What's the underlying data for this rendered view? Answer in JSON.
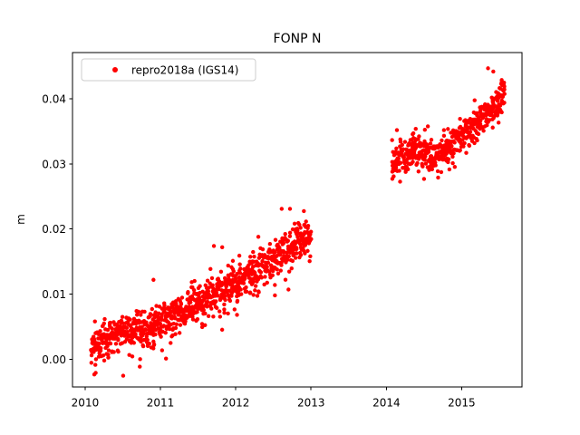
{
  "figure": {
    "background": "#ffffff",
    "title": "FONP N"
  },
  "legend": {
    "label": "repro2018a (IGS14)",
    "marker": "red-dot",
    "marker_color": "#ff0000",
    "border_color": "#cccccc",
    "background": "#ffffff"
  },
  "chart_data": {
    "type": "scatter",
    "title": "FONP N",
    "xlabel": "",
    "ylabel": "m",
    "grid": false,
    "legend_position": "upper left",
    "xlim": [
      2009.832,
      2015.801
    ],
    "ylim": [
      -0.0043,
      0.04712
    ],
    "xticks": [
      2010,
      2011,
      2012,
      2013,
      2014,
      2015
    ],
    "xtick_labels": [
      "2010",
      "2011",
      "2012",
      "2013",
      "2014",
      "2015"
    ],
    "yticks": [
      0.0,
      0.01,
      0.02,
      0.03,
      0.04
    ],
    "ytick_labels": [
      "0.00",
      "0.01",
      "0.02",
      "0.03",
      "0.04"
    ],
    "series": [
      {
        "name": "repro2018a (IGS14)",
        "color": "#ff0000",
        "marker": "dot",
        "marker_radius_px": 2.2,
        "seed": 7,
        "data_gap_years": [
          2013.0,
          2014.08
        ],
        "segments": [
          {
            "n": 920,
            "x_start": 2010.08,
            "x_end": 2013.0,
            "noise_sigma": 0.0013,
            "heavy_tail_prob": 0.035,
            "heavy_tail_mult": 2.1,
            "burst_prob": 0.05,
            "trend": [
              [
                2010.08,
                0.0015
              ],
              [
                2010.45,
                0.0042
              ],
              [
                2010.85,
                0.005
              ],
              [
                2011.25,
                0.0072
              ],
              [
                2011.65,
                0.0094
              ],
              [
                2012.05,
                0.012
              ],
              [
                2012.45,
                0.015
              ],
              [
                2012.8,
                0.0178
              ],
              [
                2013.0,
                0.019
              ]
            ]
          },
          {
            "n": 480,
            "x_start": 2014.08,
            "x_end": 2015.57,
            "noise_sigma": 0.0012,
            "heavy_tail_prob": 0.03,
            "heavy_tail_mult": 2.0,
            "burst_prob": 0.05,
            "trend": [
              [
                2014.08,
                0.03
              ],
              [
                2014.35,
                0.0322
              ],
              [
                2014.65,
                0.0311
              ],
              [
                2015.0,
                0.0342
              ],
              [
                2015.3,
                0.0372
              ],
              [
                2015.57,
                0.041
              ]
            ]
          }
        ],
        "outliers": [
          [
            2010.14,
            -0.0021
          ],
          [
            2010.73,
            0.0
          ],
          [
            2011.71,
            0.0174
          ],
          [
            2011.82,
            0.0172
          ],
          [
            2012.3,
            0.0188
          ],
          [
            2012.52,
            0.0098
          ],
          [
            2012.61,
            0.0231
          ],
          [
            2012.72,
            0.0231
          ],
          [
            2012.66,
            0.0122
          ],
          [
            2012.7,
            0.0107
          ],
          [
            2014.14,
            0.0352
          ],
          [
            2014.5,
            0.0277
          ],
          [
            2015.35,
            0.0447
          ],
          [
            2015.42,
            0.0442
          ]
        ]
      }
    ]
  }
}
